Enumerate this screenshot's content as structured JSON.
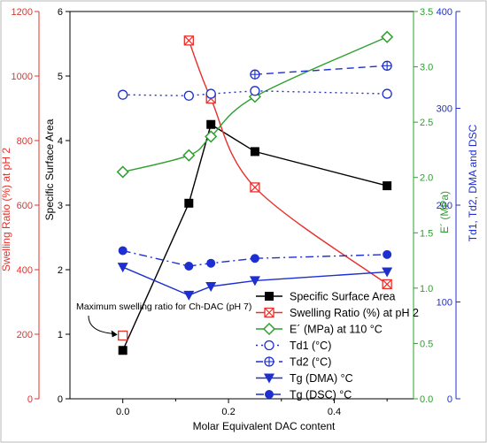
{
  "colors": {
    "black": "#000000",
    "red": "#e8302a",
    "green": "#2ea02e",
    "blue": "#1d2fd0"
  },
  "chart_data": {
    "type": "line",
    "xlabel": "Molar Equivalent DAC content",
    "xlim": [
      -0.1,
      0.55
    ],
    "xticks": [
      "0.0",
      "0.2",
      "0.4"
    ],
    "x_tick_values": [
      0.0,
      0.2,
      0.4
    ],
    "axes": {
      "left_outer": {
        "label": "Swelling Ratio (%) at pH 2",
        "range": [
          0,
          1200
        ],
        "ticks": [
          0,
          200,
          400,
          600,
          800,
          1000,
          1200
        ],
        "color": "#e8302a"
      },
      "left_inner": {
        "label": "Specific Surface Area",
        "range": [
          0,
          6
        ],
        "ticks": [
          0,
          1,
          2,
          3,
          4,
          5,
          6
        ],
        "color": "#000000"
      },
      "right_inner": {
        "label": "E´ (MPa)",
        "range": [
          0,
          3.5
        ],
        "ticks": [
          "0.0",
          "0.5",
          "1.0",
          "1.5",
          "2.0",
          "2.5",
          "3.0",
          "3.5"
        ],
        "color": "#2ea02e"
      },
      "right_outer": {
        "label": "Td1, Td2, DMA and DSC",
        "range": [
          0,
          400
        ],
        "ticks": [
          0,
          100,
          200,
          300,
          400
        ],
        "color": "#1d2fd0"
      }
    },
    "series": [
      {
        "name": "Specific Surface Area",
        "axis": "left_inner",
        "color": "#000000",
        "line": "solid",
        "marker": "square-filled",
        "x": [
          0.0,
          0.125,
          0.1667,
          0.25,
          0.5
        ],
        "y": [
          0.75,
          3.03,
          4.25,
          3.83,
          3.3
        ]
      },
      {
        "name": "Swelling Ratio (%) at pH 2",
        "axis": "left_outer",
        "color": "#e8302a",
        "line": "solid",
        "marker": "square-x",
        "x": [
          0.125,
          0.1667,
          0.25,
          0.5
        ],
        "y": [
          1110,
          930,
          655,
          355
        ],
        "curve": "smooth"
      },
      {
        "name": "E´ (MPa) at 110 °C",
        "axis": "right_inner",
        "color": "#2ea02e",
        "line": "solid",
        "marker": "diamond-open",
        "x": [
          0.0,
          0.125,
          0.1667,
          0.25,
          0.5
        ],
        "y": [
          2.05,
          2.2,
          2.37,
          2.73,
          3.27
        ],
        "curve": "smooth"
      },
      {
        "name": "Td1 (°C)",
        "axis": "right_outer",
        "color": "#1d2fd0",
        "line": "dotted",
        "marker": "circle-open",
        "x": [
          0.0,
          0.125,
          0.1667,
          0.25,
          0.5
        ],
        "y": [
          314,
          313,
          315,
          318,
          315
        ]
      },
      {
        "name": "Td2 (°C)",
        "axis": "right_outer",
        "color": "#1d2fd0",
        "line": "dashed",
        "marker": "circle-plus",
        "x": [
          0.25,
          0.5
        ],
        "y": [
          335,
          344
        ]
      },
      {
        "name": "Tg (DMA) °C",
        "axis": "right_outer",
        "color": "#1d2fd0",
        "line": "solid",
        "marker": "triangle-down-filled",
        "x": [
          0.0,
          0.125,
          0.1667,
          0.25,
          0.5
        ],
        "y": [
          136,
          107,
          116,
          122,
          131
        ]
      },
      {
        "name": "Tg (DSC) °C",
        "axis": "right_outer",
        "color": "#1d2fd0",
        "line": "dashdot",
        "marker": "circle-filled",
        "x": [
          0.0,
          0.125,
          0.1667,
          0.25,
          0.5
        ],
        "y": [
          153,
          137,
          140,
          145,
          149
        ]
      }
    ],
    "extra_points": [
      {
        "label": "Maximum swelling ratio for Ch-DAC (pH 7)",
        "axis": "left_outer",
        "x": 0.0,
        "y": 196,
        "color": "#e8302a",
        "marker": "square-open"
      }
    ],
    "annotation": "Maximum swelling ratio for Ch-DAC (pH 7)",
    "legend_position": "bottom-right",
    "grid": false
  }
}
